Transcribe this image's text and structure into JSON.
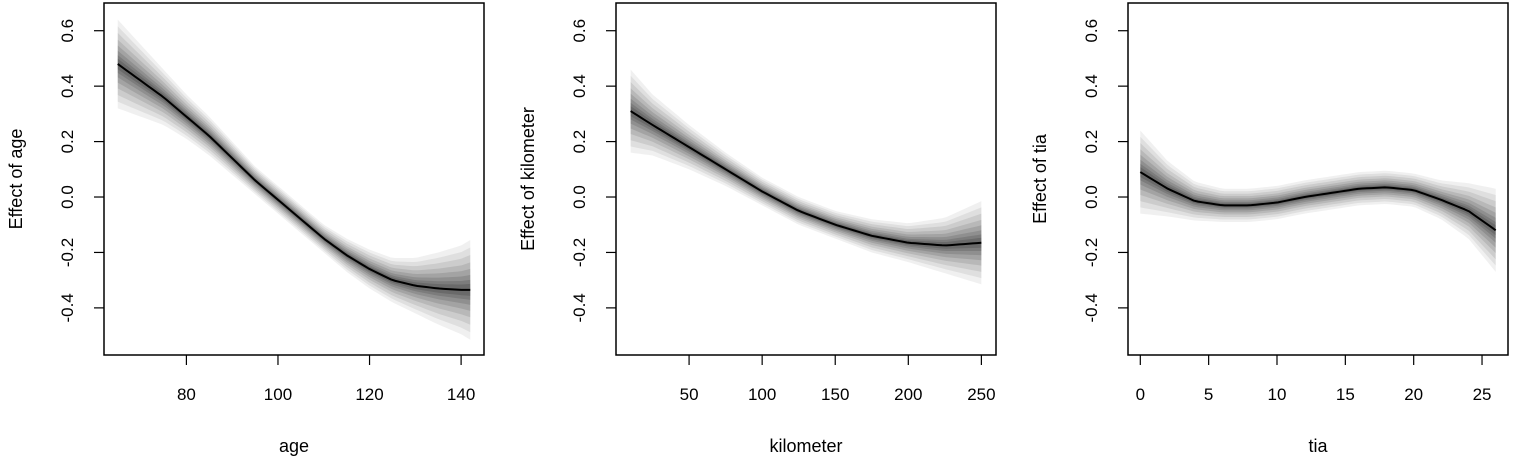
{
  "chart_data": [
    {
      "type": "line",
      "title": "",
      "xlabel": "age",
      "ylabel": "Effect of age",
      "xlim": [
        62,
        145
      ],
      "ylim": [
        -0.57,
        0.7
      ],
      "xticks": [
        80,
        100,
        120,
        140
      ],
      "yticks": [
        -0.4,
        -0.2,
        0.0,
        0.2,
        0.4,
        0.6
      ],
      "ytick_labels": [
        "-0.4",
        "-0.2",
        "0.0",
        "0.2",
        "0.4",
        "0.6"
      ],
      "band": "grey credible bands",
      "series": [
        {
          "x": [
            65,
            70,
            75,
            80,
            85,
            90,
            95,
            100,
            105,
            110,
            115,
            120,
            125,
            130,
            135,
            140,
            142
          ],
          "y": [
            0.48,
            0.42,
            0.36,
            0.29,
            0.22,
            0.14,
            0.06,
            -0.01,
            -0.08,
            -0.15,
            -0.21,
            -0.26,
            -0.3,
            -0.32,
            -0.33,
            -0.335,
            -0.335
          ],
          "spread": [
            0.16,
            0.13,
            0.1,
            0.08,
            0.07,
            0.06,
            0.05,
            0.05,
            0.05,
            0.05,
            0.06,
            0.07,
            0.08,
            0.1,
            0.13,
            0.16,
            0.18
          ]
        }
      ]
    },
    {
      "type": "line",
      "title": "",
      "xlabel": "kilometer",
      "ylabel": "Effect of kilometer",
      "xlim": [
        0,
        260
      ],
      "ylim": [
        -0.57,
        0.7
      ],
      "xticks": [
        50,
        100,
        150,
        200,
        250
      ],
      "yticks": [
        -0.4,
        -0.2,
        0.0,
        0.2,
        0.4,
        0.6
      ],
      "ytick_labels": [
        "-0.4",
        "-0.2",
        "0.0",
        "0.2",
        "0.4",
        "0.6"
      ],
      "band": "grey credible bands",
      "series": [
        {
          "x": [
            10,
            25,
            50,
            75,
            100,
            125,
            150,
            175,
            200,
            225,
            250
          ],
          "y": [
            0.31,
            0.26,
            0.18,
            0.1,
            0.02,
            -0.05,
            -0.1,
            -0.14,
            -0.165,
            -0.175,
            -0.165
          ],
          "spread": [
            0.15,
            0.11,
            0.08,
            0.06,
            0.05,
            0.05,
            0.05,
            0.06,
            0.07,
            0.1,
            0.15
          ]
        }
      ]
    },
    {
      "type": "line",
      "title": "",
      "xlabel": "tia",
      "ylabel": "Effect of tia",
      "xlim": [
        -0.9,
        26.9
      ],
      "ylim": [
        -0.57,
        0.7
      ],
      "xticks": [
        0,
        5,
        10,
        15,
        20,
        25
      ],
      "yticks": [
        -0.4,
        -0.2,
        0.0,
        0.2,
        0.4,
        0.6
      ],
      "ytick_labels": [
        "-0.4",
        "-0.2",
        "0.0",
        "0.2",
        "0.4",
        "0.6"
      ],
      "band": "grey credible bands",
      "series": [
        {
          "x": [
            0,
            2,
            4,
            6,
            8,
            10,
            12,
            14,
            16,
            18,
            20,
            22,
            24,
            26
          ],
          "y": [
            0.09,
            0.03,
            -0.015,
            -0.03,
            -0.03,
            -0.02,
            0.0,
            0.015,
            0.03,
            0.035,
            0.025,
            -0.01,
            -0.05,
            -0.12
          ],
          "spread": [
            0.15,
            0.1,
            0.07,
            0.06,
            0.06,
            0.06,
            0.06,
            0.06,
            0.06,
            0.06,
            0.06,
            0.07,
            0.1,
            0.15
          ]
        }
      ]
    }
  ]
}
